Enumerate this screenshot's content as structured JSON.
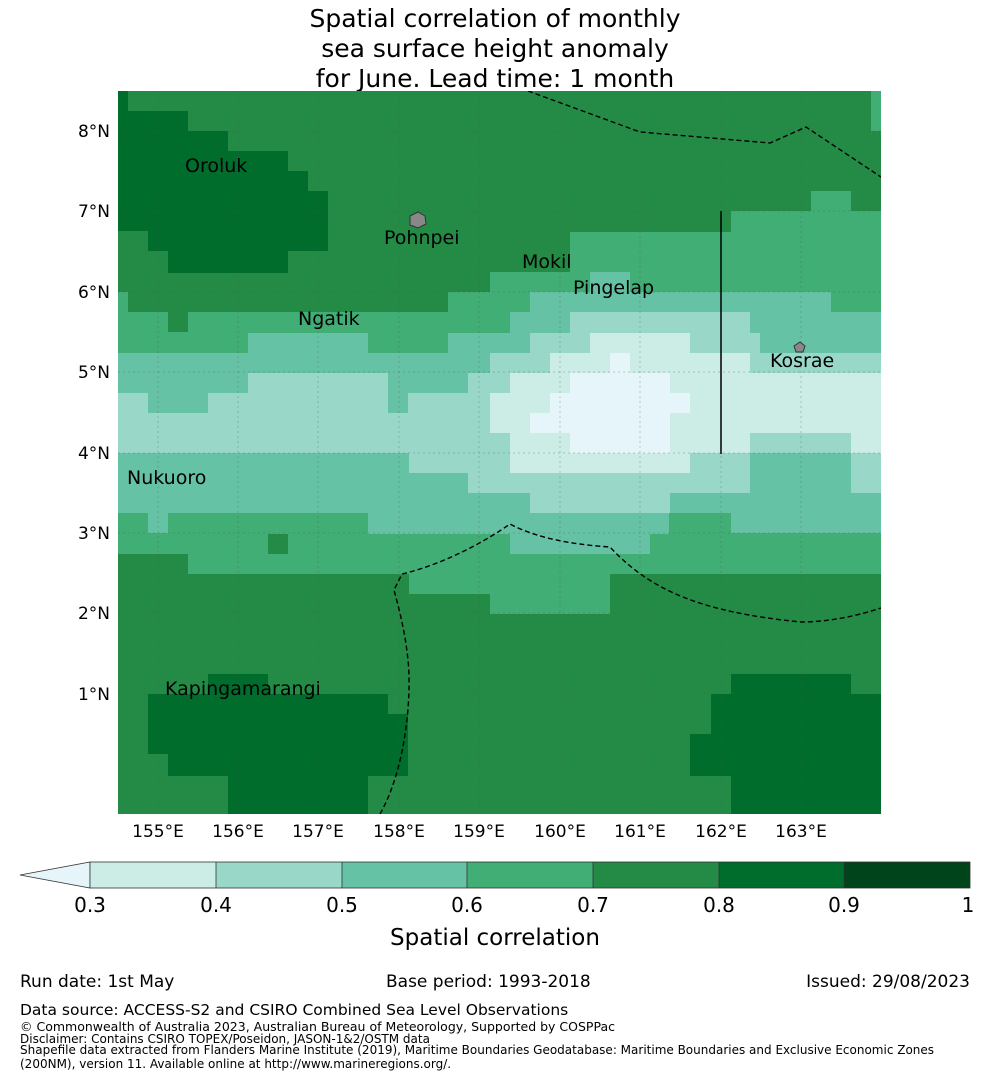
{
  "title": {
    "line1": "Spatial correlation of monthly",
    "line2": "sea surface height anomaly",
    "line3": "for June. Lead time: 1 month"
  },
  "map": {
    "lon_range": [
      154.5,
      164.0
    ],
    "lat_range": [
      -0.25,
      8.5
    ],
    "lon_ticks": [
      "155°E",
      "156°E",
      "157°E",
      "158°E",
      "159°E",
      "160°E",
      "161°E",
      "162°E",
      "163°E"
    ],
    "lat_ticks": [
      "1°N",
      "2°N",
      "3°N",
      "4°N",
      "5°N",
      "6°N",
      "7°N",
      "8°N"
    ],
    "place_labels": [
      "Oroluk",
      "Pohnpei",
      "Mokil",
      "Pingelap",
      "Ngatik",
      "Kosrae",
      "Nukuoro",
      "Kapingamarangi"
    ]
  },
  "colorbar": {
    "label": "Spatial correlation",
    "ticks": [
      "0.3",
      "0.4",
      "0.5",
      "0.6",
      "0.7",
      "0.8",
      "0.9",
      "1"
    ],
    "colors": [
      "#e5f5f9",
      "#ccece6",
      "#99d8c9",
      "#66c2a4",
      "#41ae76",
      "#238b45",
      "#006d2c",
      "#00441b"
    ]
  },
  "footer": {
    "run_date": "Run date: 1st May",
    "base_period": "Base period: 1993-2018",
    "issued": "Issued: 29/08/2023",
    "data_source": "Data source: ACCESS-S2 and CSIRO Combined Sea Level Observations",
    "copyright": "© Commonwealth of Australia 2023, Australian Bureau of Meteorology, Supported by COSPPac",
    "disclaimer": "Disclaimer: Contains CSIRO TOPEX/Poseidon, JASON-1&2/OSTM data",
    "shapefile": "Shapefile data extracted from Flanders Marine Institute (2019), Maritime Boundaries Geodatabase: Maritime Boundaries and Exclusive Economic Zones (200NM), version 11. Available online at http://www.marineregions.org/."
  }
}
